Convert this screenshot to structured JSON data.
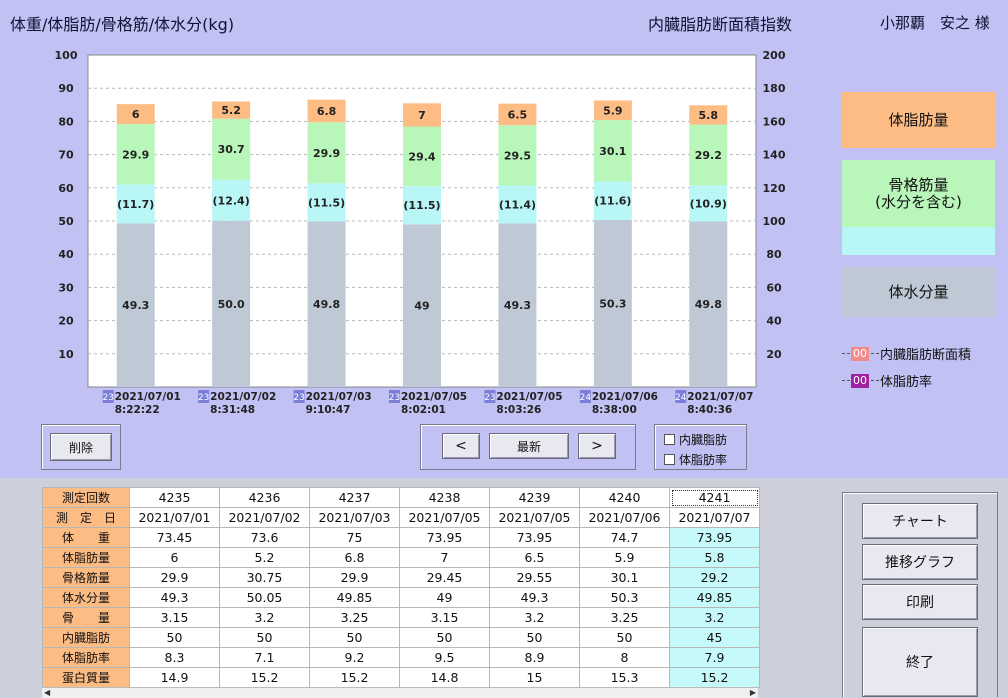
{
  "header": {
    "title_left": "体重/体脂肪/骨格筋/体水分(kg)",
    "title_mid": "内臓脂肪断面積指数",
    "user": "小那覇　安之 様"
  },
  "chart_data": {
    "type": "bar",
    "stacked": true,
    "y_left_ticks": [
      "100",
      "90",
      "80",
      "70",
      "60",
      "50",
      "40",
      "30",
      "20",
      "10"
    ],
    "y_right_ticks": [
      "200",
      "180",
      "160",
      "140",
      "120",
      "100",
      "80",
      "60",
      "40",
      "20"
    ],
    "ylim_left": [
      0,
      100
    ],
    "ylim_right": [
      0,
      200
    ],
    "grid": true,
    "categories": [
      {
        "badge": "23",
        "date": "2021/07/01",
        "time": "8:22:22"
      },
      {
        "badge": "23",
        "date": "2021/07/02",
        "time": "8:31:48"
      },
      {
        "badge": "23",
        "date": "2021/07/03",
        "time": "9:10:47"
      },
      {
        "badge": "23",
        "date": "2021/07/05",
        "time": "8:02:01"
      },
      {
        "badge": "23",
        "date": "2021/07/05",
        "time": "8:03:26"
      },
      {
        "badge": "24",
        "date": "2021/07/06",
        "time": "8:38:00"
      },
      {
        "badge": "24",
        "date": "2021/07/07",
        "time": "8:40:36"
      }
    ],
    "series": [
      {
        "name": "体水分量",
        "color": "#bfc9d5",
        "values": [
          49.3,
          50.05,
          49.85,
          49,
          49.3,
          50.3,
          49.85
        ],
        "labels": [
          "49.3",
          "50.0",
          "49.8",
          "49",
          "49.3",
          "50.3",
          "49.8"
        ]
      },
      {
        "name": "骨格筋量(水分含む)",
        "color": "#b9f6f6",
        "values": [
          11.7,
          12.4,
          11.5,
          11.5,
          11.4,
          11.6,
          10.9
        ],
        "labels": [
          "(11.7)",
          "(12.4)",
          "(11.5)",
          "(11.5)",
          "(11.4)",
          "(11.6)",
          "(10.9)"
        ]
      },
      {
        "name": "骨格筋量",
        "color": "#b9f6b9",
        "values": [
          18.2,
          18.35,
          18.4,
          17.95,
          18.15,
          18.5,
          18.3
        ],
        "labels": [
          "29.9",
          "30.7",
          "29.9",
          "29.4",
          "29.5",
          "30.1",
          "29.2"
        ]
      },
      {
        "name": "体脂肪量",
        "color": "#fcbc83",
        "values": [
          6,
          5.2,
          6.8,
          7,
          6.5,
          5.9,
          5.8
        ],
        "labels": [
          "6",
          "5.2",
          "6.8",
          "7",
          "6.5",
          "5.9",
          "5.8"
        ]
      }
    ]
  },
  "legend": {
    "fat": "体脂肪量",
    "muscle_line1": "骨格筋量",
    "muscle_line2": "(水分を含む)",
    "water": "体水分量",
    "visceral_chip": "00",
    "visceral_label": "内臓脂肪断面積",
    "fatrate_chip": "00",
    "fatrate_label": "体脂肪率",
    "visceral_color": "#f38a8a",
    "fatrate_color": "#a020a0"
  },
  "controls": {
    "delete": "削除",
    "prev": "<",
    "latest": "最新",
    "next": ">",
    "cb_visceral": "内臓脂肪",
    "cb_fatrate": "体脂肪率"
  },
  "table": {
    "rows": [
      {
        "label": "測定回数",
        "values": [
          "4235",
          "4236",
          "4237",
          "4238",
          "4239",
          "4240",
          "4241"
        ]
      },
      {
        "label": "測　定　日",
        "values": [
          "2021/07/01",
          "2021/07/02",
          "2021/07/03",
          "2021/07/05",
          "2021/07/05",
          "2021/07/06",
          "2021/07/07"
        ]
      },
      {
        "label": "体　　重",
        "values": [
          "73.45",
          "73.6",
          "75",
          "73.95",
          "73.95",
          "74.7",
          "73.95"
        ]
      },
      {
        "label": "体脂肪量",
        "values": [
          "6",
          "5.2",
          "6.8",
          "7",
          "6.5",
          "5.9",
          "5.8"
        ]
      },
      {
        "label": "骨格筋量",
        "values": [
          "29.9",
          "30.75",
          "29.9",
          "29.45",
          "29.55",
          "30.1",
          "29.2"
        ]
      },
      {
        "label": "体水分量",
        "values": [
          "49.3",
          "50.05",
          "49.85",
          "49",
          "49.3",
          "50.3",
          "49.85"
        ]
      },
      {
        "label": "骨　　量",
        "values": [
          "3.15",
          "3.2",
          "3.25",
          "3.15",
          "3.2",
          "3.25",
          "3.2"
        ]
      },
      {
        "label": "内臓脂肪",
        "values": [
          "50",
          "50",
          "50",
          "50",
          "50",
          "50",
          "45"
        ]
      },
      {
        "label": "体脂肪率",
        "values": [
          "8.3",
          "7.1",
          "9.2",
          "9.5",
          "8.9",
          "8",
          "7.9"
        ]
      },
      {
        "label": "蛋白質量",
        "values": [
          "14.9",
          "15.2",
          "15.2",
          "14.8",
          "15",
          "15.3",
          "15.2"
        ]
      }
    ]
  },
  "side_buttons": {
    "chart": "チャート",
    "trend": "推移グラフ",
    "print": "印刷",
    "exit": "終了"
  }
}
